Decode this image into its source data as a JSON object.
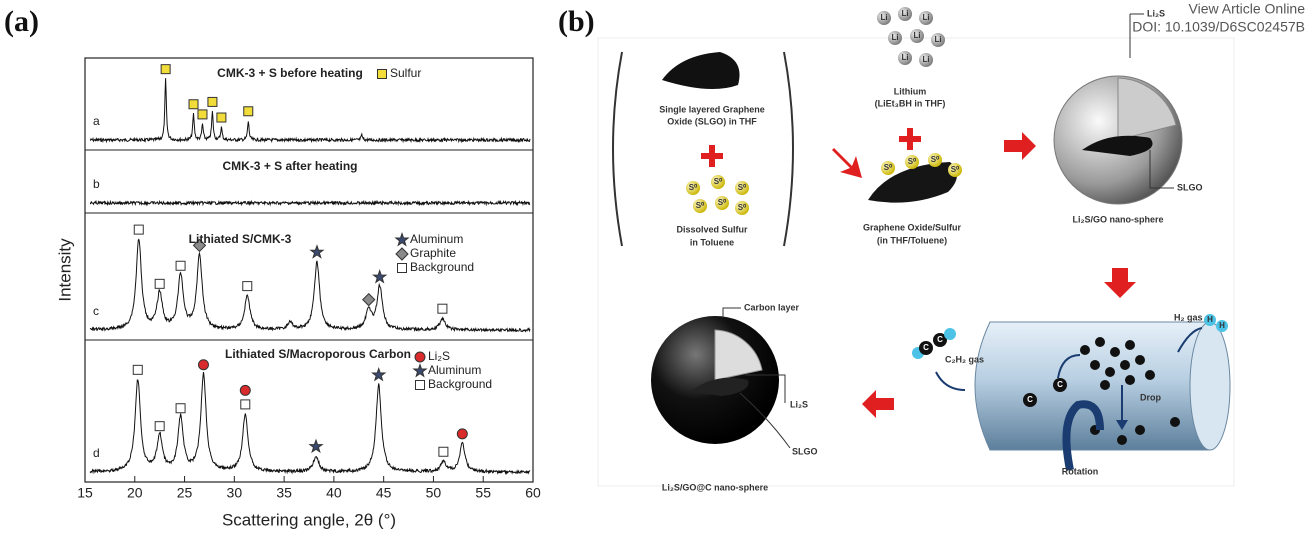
{
  "header": {
    "link": "View Article Online",
    "doi": "DOI: 10.1039/D6SC02457B"
  },
  "panel_a": {
    "label": "(a)",
    "x_label": "Scattering angle, 2θ (°)",
    "y_label": "Intensity",
    "xlim": [
      15,
      60
    ],
    "xticks": [
      15,
      20,
      25,
      30,
      35,
      40,
      45,
      50,
      55,
      60
    ],
    "markers": {
      "sulfur": {
        "shape": "square",
        "color": "#f2dc3a"
      },
      "background": {
        "shape": "square",
        "color": "#ffffff"
      },
      "graphite": {
        "shape": "diamond",
        "color": "#8a8a8a"
      },
      "aluminum": {
        "shape": "star",
        "color": "#3a4a6e"
      },
      "li2s": {
        "shape": "circle",
        "color": "#d92b2b"
      }
    },
    "traces": [
      {
        "letter": "a",
        "title": "CMK-3 + S before heating",
        "legend": [
          {
            "marker": "sulfur",
            "text": "Sulfur"
          }
        ],
        "peaks": [
          {
            "x": 23.1,
            "h": 0.78,
            "markers": [
              "sulfur"
            ]
          },
          {
            "x": 25.9,
            "h": 0.33,
            "markers": [
              "sulfur"
            ]
          },
          {
            "x": 26.8,
            "h": 0.2,
            "markers": [
              "sulfur"
            ]
          },
          {
            "x": 27.8,
            "h": 0.36,
            "markers": [
              "sulfur"
            ]
          },
          {
            "x": 28.7,
            "h": 0.16,
            "markers": [
              "sulfur"
            ]
          },
          {
            "x": 31.4,
            "h": 0.24,
            "markers": [
              "sulfur"
            ]
          },
          {
            "x": 42.8,
            "h": 0.06,
            "markers": []
          }
        ]
      },
      {
        "letter": "b",
        "title": "CMK-3 + S after heating",
        "legend": [],
        "peaks": []
      },
      {
        "letter": "c",
        "title": "Lithiated S/CMK-3",
        "legend": [
          {
            "marker": "aluminum",
            "text": "Aluminum"
          },
          {
            "marker": "graphite",
            "text": "Graphite"
          },
          {
            "marker": "background",
            "text": "Background"
          }
        ],
        "peaks": [
          {
            "x": 20.4,
            "h": 0.8,
            "markers": [
              "background"
            ]
          },
          {
            "x": 22.5,
            "h": 0.32,
            "markers": [
              "background"
            ]
          },
          {
            "x": 24.6,
            "h": 0.48,
            "markers": [
              "background"
            ]
          },
          {
            "x": 26.5,
            "h": 0.66,
            "markers": [
              "graphite"
            ]
          },
          {
            "x": 31.3,
            "h": 0.3,
            "markers": [
              "background"
            ]
          },
          {
            "x": 35.6,
            "h": 0.06,
            "markers": []
          },
          {
            "x": 38.3,
            "h": 0.6,
            "markers": [
              "aluminum"
            ]
          },
          {
            "x": 43.5,
            "h": 0.18,
            "markers": [
              "graphite"
            ]
          },
          {
            "x": 44.6,
            "h": 0.38,
            "markers": [
              "aluminum"
            ]
          },
          {
            "x": 50.9,
            "h": 0.1,
            "markers": [
              "background"
            ]
          }
        ]
      },
      {
        "letter": "d",
        "title": "Lithiated S/Macroporous Carbon",
        "legend": [
          {
            "marker": "li2s",
            "text": "Li₂S"
          },
          {
            "marker": "aluminum",
            "text": "Aluminum"
          },
          {
            "marker": "background",
            "text": "Background"
          }
        ],
        "peaks": [
          {
            "x": 20.3,
            "h": 0.72,
            "markers": [
              "background"
            ]
          },
          {
            "x": 22.5,
            "h": 0.28,
            "markers": [
              "background"
            ]
          },
          {
            "x": 24.6,
            "h": 0.42,
            "markers": [
              "background"
            ]
          },
          {
            "x": 26.9,
            "h": 0.76,
            "markers": [
              "li2s"
            ]
          },
          {
            "x": 31.1,
            "h": 0.45,
            "markers": [
              "li2s",
              "background"
            ]
          },
          {
            "x": 38.2,
            "h": 0.12,
            "markers": [
              "aluminum"
            ]
          },
          {
            "x": 44.5,
            "h": 0.68,
            "markers": [
              "aluminum"
            ]
          },
          {
            "x": 51.0,
            "h": 0.08,
            "markers": [
              "background"
            ]
          },
          {
            "x": 52.9,
            "h": 0.22,
            "markers": [
              "li2s"
            ]
          }
        ]
      }
    ]
  },
  "panel_b": {
    "label": "(b)",
    "slgo_label": [
      "Single layered Graphene",
      "Oxide (SLGO) in THF"
    ],
    "sulfur_label": [
      "Dissolved Sulfur",
      "in Toluene"
    ],
    "lithium_label": [
      "Lithium",
      "(LiEt₃BH in THF)"
    ],
    "go_s_label": [
      "Graphene Oxide/Sulfur",
      "(in THF/Toluene)"
    ],
    "sphere_li2s": "Li₂S",
    "sphere_slgo": "SLGO",
    "sphere_label": "Li₂S/GO nano-sphere",
    "h2_gas": "H₂ gas",
    "c2h2_gas": "C₂H₂ gas",
    "drop": "Drop",
    "rotation": "Rotation",
    "carbon_layer": "Carbon layer",
    "coated_li2s": "Li₂S",
    "coated_slgo": "SLGO",
    "coated_label": "Li₂S/GO@C nano-sphere",
    "sulfur_icon": "S⁰",
    "lithium_icon": "Li",
    "carbon_icon": "C",
    "hydrogen_icon": "H"
  }
}
